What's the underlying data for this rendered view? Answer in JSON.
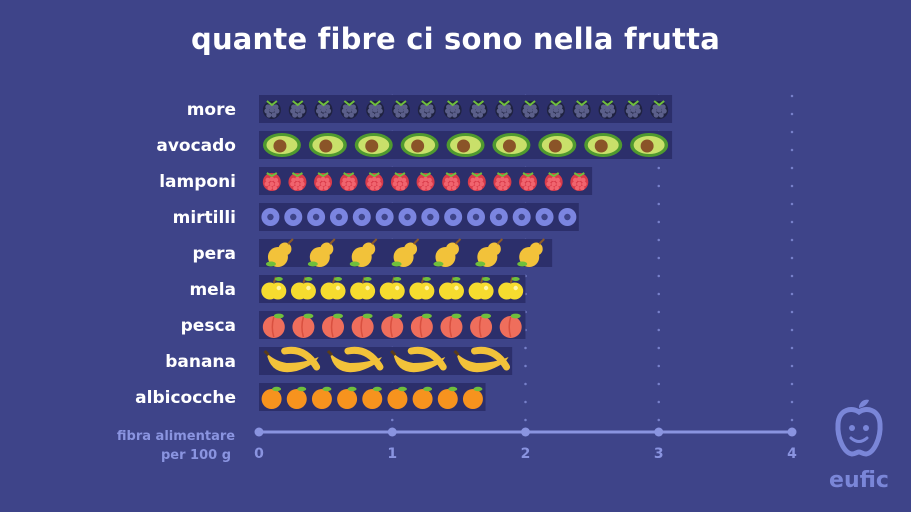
{
  "title": "quante fibre ci sono nella frutta",
  "brand": {
    "name": "eufic",
    "color": "#7a86d8"
  },
  "colors": {
    "background": "#3e4489",
    "bar_band": "#2c2f6b",
    "axis": "#8a94e0",
    "category_text": "#ffffff"
  },
  "chart_data": {
    "type": "bar",
    "orientation": "horizontal",
    "title": "quante fibre ci sono nella frutta",
    "xlabel": [
      "fibra alimentare",
      "per 100 g"
    ],
    "xlim": [
      0,
      4
    ],
    "xticks": [
      0,
      1,
      2,
      3,
      4
    ],
    "grid": "dotted vertical lines at ticks",
    "categories": [
      "more",
      "avocado",
      "lamponi",
      "mirtilli",
      "pera",
      "mela",
      "pesca",
      "banana",
      "albicocche"
    ],
    "values": [
      3.1,
      3.1,
      2.5,
      2.4,
      2.2,
      2.0,
      2.0,
      1.9,
      1.7
    ],
    "icons": [
      "blackberry-icon",
      "avocado-icon",
      "raspberry-icon",
      "blueberry-icon",
      "pear-icon",
      "apple-icon",
      "peach-icon",
      "banana-icon",
      "apricot-icon"
    ],
    "icon_counts": [
      16,
      9,
      13,
      14,
      7,
      9,
      9,
      4,
      9
    ]
  }
}
